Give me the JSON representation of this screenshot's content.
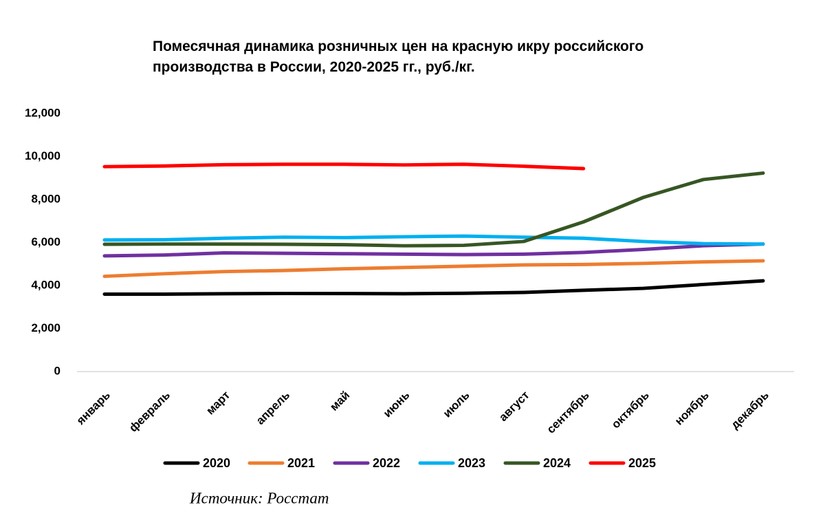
{
  "chart_data": {
    "type": "line",
    "title": "Помесячная динамика розничных цен на красную икру российского производства в России, 2020-2025 гг., руб./кг.",
    "categories": [
      "январь",
      "февраль",
      "март",
      "апрель",
      "май",
      "июнь",
      "июль",
      "август",
      "сентябрь",
      "октябрь",
      "ноябрь",
      "декабрь"
    ],
    "series": [
      {
        "name": "2020",
        "color": "#000000",
        "values": [
          3600,
          3600,
          3620,
          3630,
          3630,
          3620,
          3640,
          3680,
          3780,
          3870,
          4050,
          4220
        ]
      },
      {
        "name": "2021",
        "color": "#ed7d31",
        "values": [
          4430,
          4550,
          4650,
          4700,
          4780,
          4840,
          4900,
          4960,
          4980,
          5030,
          5100,
          5150
        ]
      },
      {
        "name": "2022",
        "color": "#7030a0",
        "values": [
          5380,
          5420,
          5520,
          5500,
          5480,
          5460,
          5440,
          5460,
          5540,
          5680,
          5850,
          5930
        ]
      },
      {
        "name": "2023",
        "color": "#00b0f0",
        "values": [
          6120,
          6130,
          6200,
          6250,
          6230,
          6270,
          6300,
          6250,
          6200,
          6050,
          5950,
          5930
        ]
      },
      {
        "name": "2024",
        "color": "#375623",
        "values": [
          5920,
          5930,
          5930,
          5920,
          5900,
          5850,
          5870,
          6050,
          6960,
          8100,
          8930,
          9230
        ]
      },
      {
        "name": "2025",
        "color": "#ff0000",
        "values": [
          9530,
          9560,
          9620,
          9640,
          9640,
          9610,
          9640,
          9550,
          9440,
          null,
          null,
          null
        ]
      }
    ],
    "ylim": [
      0,
      12000
    ],
    "yticks": [
      0,
      {
        "value": 2000,
        "label": "2,000"
      },
      {
        "value": 4000,
        "label": "4,000"
      },
      {
        "value": 6000,
        "label": "6,000"
      },
      {
        "value": 8000,
        "label": "8,000"
      },
      {
        "value": 10000,
        "label": "10,000"
      },
      {
        "value": 12000,
        "label": "12,000"
      }
    ],
    "legend": "bottom",
    "source": "Источник: Росстат"
  }
}
